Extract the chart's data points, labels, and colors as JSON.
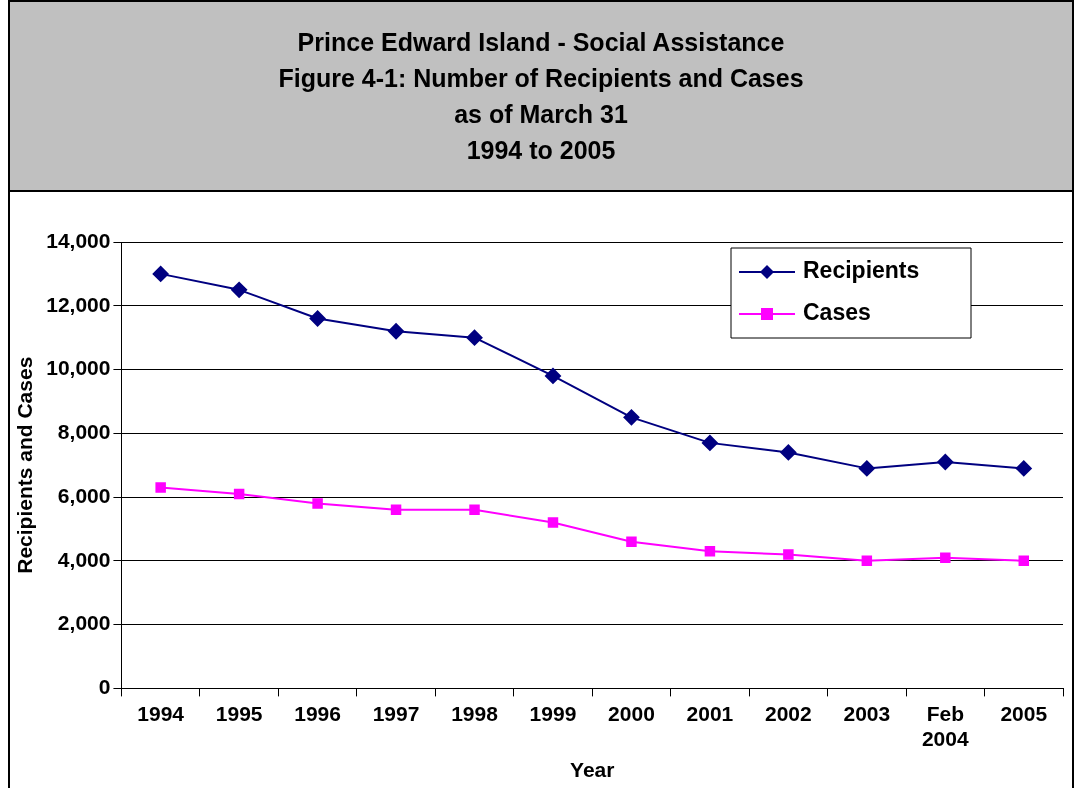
{
  "chart_data": {
    "type": "line",
    "title": "Prince Edward Island - Social Assistance\nFigure 4-1: Number of Recipients and Cases\nas of March 31\n1994 to 2005",
    "xlabel": "Year",
    "ylabel": "Recipients and Cases",
    "categories": [
      "1994",
      "1995",
      "1996",
      "1997",
      "1998",
      "1999",
      "2000",
      "2001",
      "2002",
      "2003",
      "Feb 2004",
      "2005"
    ],
    "series": [
      {
        "name": "Recipients",
        "color": "#000080",
        "marker": "diamond",
        "values": [
          13000,
          12500,
          11600,
          11200,
          11000,
          9800,
          8500,
          7700,
          7400,
          6900,
          7100,
          6900
        ]
      },
      {
        "name": "Cases",
        "color": "#ff00ff",
        "marker": "square",
        "values": [
          6300,
          6100,
          5800,
          5600,
          5600,
          5200,
          4600,
          4300,
          4200,
          4000,
          4100,
          4000
        ]
      }
    ],
    "ylim": [
      0,
      14000
    ],
    "yticks": [
      {
        "value": 0,
        "label": "0"
      },
      {
        "value": 2000,
        "label": "2,000"
      },
      {
        "value": 4000,
        "label": "4,000"
      },
      {
        "value": 6000,
        "label": "6,000"
      },
      {
        "value": 8000,
        "label": "8,000"
      },
      {
        "value": 10000,
        "label": "10,000"
      },
      {
        "value": 12000,
        "label": "12,000"
      },
      {
        "value": 14000,
        "label": "14,000"
      }
    ],
    "grid": "y",
    "legend": "top right",
    "line_style": "solid"
  }
}
